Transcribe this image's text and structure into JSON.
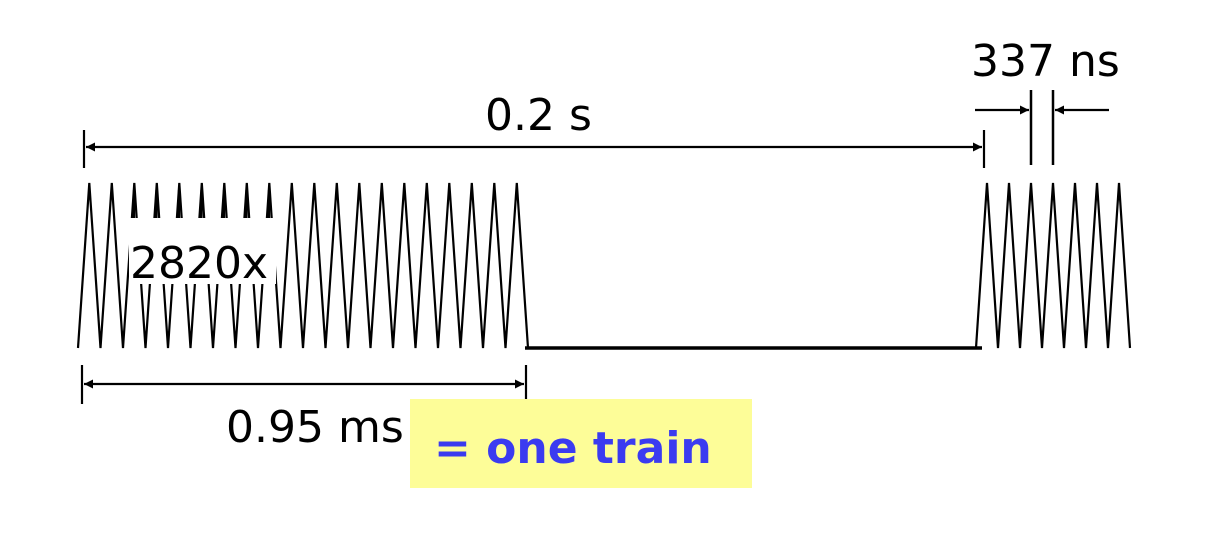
{
  "labels": {
    "period_long": "0.2 s",
    "pulse_spacing": "337 ns",
    "train_duration": "0.95 ms",
    "pulse_count": "2820x",
    "callout": "= one train"
  },
  "colors": {
    "line": "#000000",
    "callout_text": "#3b3bf0",
    "callout_bg": "#fdfd98"
  }
}
